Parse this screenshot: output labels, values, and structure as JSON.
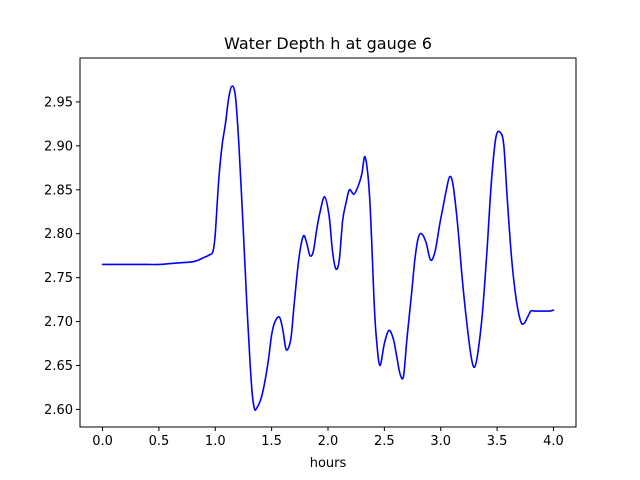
{
  "chart_data": {
    "type": "line",
    "title": "Water Depth h at gauge 6",
    "xlabel": "hours",
    "ylabel": "",
    "xlim": [
      -0.2,
      4.2
    ],
    "ylim": [
      2.58,
      3.0
    ],
    "grid": false,
    "xticks": [
      0.0,
      0.5,
      1.0,
      1.5,
      2.0,
      2.5,
      3.0,
      3.5,
      4.0
    ],
    "xtick_labels": [
      "0.0",
      "0.5",
      "1.0",
      "1.5",
      "2.0",
      "2.5",
      "3.0",
      "3.5",
      "4.0"
    ],
    "yticks": [
      2.6,
      2.65,
      2.7,
      2.75,
      2.8,
      2.85,
      2.9,
      2.95
    ],
    "ytick_labels": [
      "2.60",
      "2.65",
      "2.70",
      "2.75",
      "2.80",
      "2.85",
      "2.90",
      "2.95"
    ],
    "series": [
      {
        "name": "h",
        "color": "#0000ff",
        "x": [
          0.0,
          0.2,
          0.4,
          0.5,
          0.6,
          0.7,
          0.8,
          0.85,
          0.9,
          0.95,
          0.98,
          1.0,
          1.03,
          1.06,
          1.09,
          1.12,
          1.15,
          1.18,
          1.21,
          1.25,
          1.28,
          1.31,
          1.33,
          1.35,
          1.37,
          1.4,
          1.43,
          1.47,
          1.5,
          1.53,
          1.57,
          1.6,
          1.63,
          1.67,
          1.7,
          1.74,
          1.78,
          1.81,
          1.84,
          1.87,
          1.9,
          1.93,
          1.97,
          2.01,
          2.04,
          2.07,
          2.1,
          2.13,
          2.16,
          2.19,
          2.23,
          2.27,
          2.3,
          2.33,
          2.37,
          2.41,
          2.43,
          2.46,
          2.5,
          2.54,
          2.58,
          2.61,
          2.64,
          2.67,
          2.7,
          2.74,
          2.77,
          2.8,
          2.83,
          2.87,
          2.91,
          2.95,
          2.99,
          3.02,
          3.05,
          3.08,
          3.11,
          3.15,
          3.19,
          3.23,
          3.27,
          3.3,
          3.33,
          3.37,
          3.41,
          3.45,
          3.49,
          3.53,
          3.56,
          3.59,
          3.63,
          3.67,
          3.71,
          3.74,
          3.77,
          3.8,
          3.83,
          3.87,
          3.9,
          3.93,
          3.95,
          3.97,
          4.0
        ],
        "y": [
          2.765,
          2.765,
          2.765,
          2.765,
          2.766,
          2.767,
          2.768,
          2.77,
          2.773,
          2.776,
          2.78,
          2.8,
          2.86,
          2.9,
          2.925,
          2.955,
          2.968,
          2.955,
          2.9,
          2.8,
          2.72,
          2.65,
          2.615,
          2.6,
          2.602,
          2.61,
          2.625,
          2.655,
          2.685,
          2.7,
          2.705,
          2.69,
          2.668,
          2.68,
          2.72,
          2.77,
          2.797,
          2.79,
          2.775,
          2.78,
          2.805,
          2.825,
          2.842,
          2.82,
          2.78,
          2.76,
          2.77,
          2.815,
          2.835,
          2.85,
          2.845,
          2.855,
          2.868,
          2.887,
          2.84,
          2.72,
          2.68,
          2.65,
          2.675,
          2.69,
          2.68,
          2.66,
          2.64,
          2.638,
          2.68,
          2.73,
          2.77,
          2.795,
          2.8,
          2.79,
          2.77,
          2.78,
          2.81,
          2.83,
          2.85,
          2.865,
          2.855,
          2.81,
          2.75,
          2.7,
          2.66,
          2.648,
          2.665,
          2.71,
          2.78,
          2.86,
          2.91,
          2.915,
          2.9,
          2.84,
          2.77,
          2.725,
          2.7,
          2.698,
          2.705,
          2.712,
          2.712,
          2.712,
          2.712,
          2.712,
          2.712,
          2.712,
          2.713
        ]
      }
    ]
  }
}
